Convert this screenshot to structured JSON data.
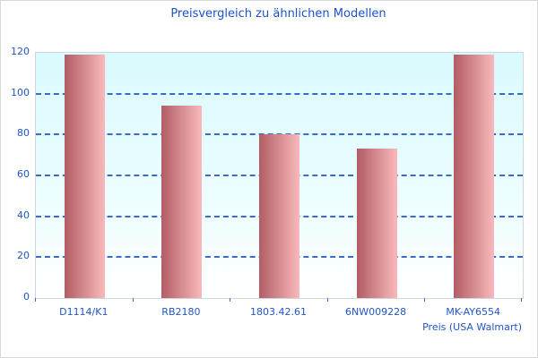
{
  "page": {
    "title": "Preisvergleich zu ähnlichen Modellen",
    "x_axis_title": "Preis (USA Walmart)"
  },
  "chart_data": {
    "type": "bar",
    "title": "Preisvergleich zu ähnlichen Modellen",
    "categories": [
      "D1114/K1",
      "RB2180",
      "1803.42.61",
      "6NW009228",
      "MK-AY6554"
    ],
    "values": [
      119,
      94,
      80,
      73,
      119
    ],
    "xlabel": "Preis (USA Walmart)",
    "ylabel": "",
    "ylim": [
      0,
      120
    ],
    "yticks": [
      0,
      20,
      40,
      60,
      80,
      100,
      120
    ],
    "grid": "horizontal-dashed",
    "legend": "none"
  },
  "colors": {
    "title_text": "#1a53cc",
    "axis_text": "#2155c8",
    "gridline": "#3a6bc9",
    "plot_border": "#cdd9dc",
    "outer_border": "#d9d9d9",
    "plot_bg_top": "#d9fafe",
    "plot_bg_bottom": "#ffffff",
    "bar_gradient_dark": "#b25d64",
    "bar_gradient_light": "#f9b9bc"
  }
}
